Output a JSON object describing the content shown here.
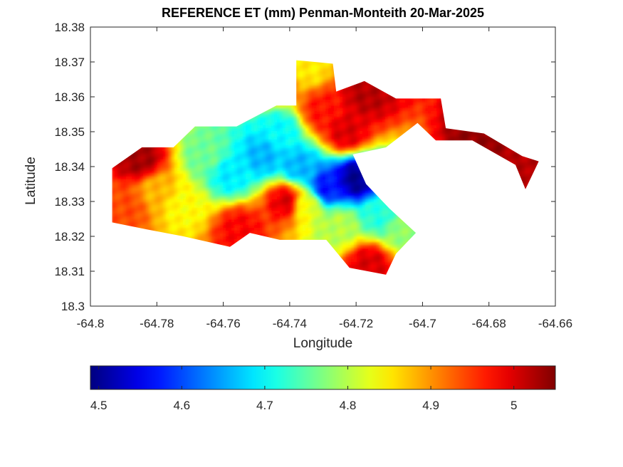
{
  "title": "REFERENCE ET (mm) Penman-Monteith 20-Mar-2025",
  "axes": {
    "xlabel": "Longitude",
    "ylabel": "Latitude",
    "xlim": [
      -64.8,
      -64.66
    ],
    "ylim": [
      18.3,
      18.38
    ],
    "xticks": [
      "-64.8",
      "-64.78",
      "-64.76",
      "-64.74",
      "-64.72",
      "-64.7",
      "-64.68",
      "-64.66"
    ],
    "yticks": [
      "18.3",
      "18.31",
      "18.32",
      "18.33",
      "18.34",
      "18.35",
      "18.36",
      "18.37",
      "18.38"
    ]
  },
  "colorbar": {
    "colormap": "jet",
    "range": [
      4.49,
      5.05
    ],
    "ticks": [
      "4.5",
      "4.6",
      "4.7",
      "4.8",
      "4.9",
      "5"
    ],
    "tick_values": [
      4.5,
      4.6,
      4.7,
      4.8,
      4.9,
      5.0
    ]
  },
  "chart_data": {
    "type": "heatmap",
    "variable": "Reference evapotranspiration",
    "units": "mm",
    "region": [
      [
        -64.7935,
        18.3395
      ],
      [
        -64.7845,
        18.3455
      ],
      [
        -64.775,
        18.3455
      ],
      [
        -64.7685,
        18.3515
      ],
      [
        -64.756,
        18.3515
      ],
      [
        -64.744,
        18.3575
      ],
      [
        -64.738,
        18.3575
      ],
      [
        -64.738,
        18.3705
      ],
      [
        -64.727,
        18.3695
      ],
      [
        -64.726,
        18.3615
      ],
      [
        -64.7175,
        18.3645
      ],
      [
        -64.708,
        18.3595
      ],
      [
        -64.6945,
        18.3595
      ],
      [
        -64.693,
        18.351
      ],
      [
        -64.6815,
        18.3495
      ],
      [
        -64.67,
        18.343
      ],
      [
        -64.665,
        18.3415
      ],
      [
        -64.669,
        18.3335
      ],
      [
        -64.672,
        18.3405
      ],
      [
        -64.685,
        18.3475
      ],
      [
        -64.696,
        18.3475
      ],
      [
        -64.7015,
        18.3525
      ],
      [
        -64.711,
        18.3455
      ],
      [
        -64.721,
        18.3435
      ],
      [
        -64.717,
        18.335
      ],
      [
        -64.71,
        18.328
      ],
      [
        -64.702,
        18.321
      ],
      [
        -64.708,
        18.315
      ],
      [
        -64.711,
        18.309
      ],
      [
        -64.722,
        18.311
      ],
      [
        -64.729,
        18.319
      ],
      [
        -64.743,
        18.319
      ],
      [
        -64.752,
        18.321
      ],
      [
        -64.758,
        18.317
      ],
      [
        -64.772,
        18.32
      ],
      [
        -64.783,
        18.322
      ],
      [
        -64.7935,
        18.324
      ]
    ],
    "hotspots": [
      {
        "lon": -64.72,
        "lat": 18.3365,
        "value": 4.5
      },
      {
        "lon": -64.729,
        "lat": 18.334,
        "value": 4.57
      },
      {
        "lon": -64.737,
        "lat": 18.34,
        "value": 4.66
      },
      {
        "lon": -64.748,
        "lat": 18.343,
        "value": 4.66
      },
      {
        "lon": -64.743,
        "lat": 18.35,
        "value": 4.7
      },
      {
        "lon": -64.758,
        "lat": 18.338,
        "value": 4.69
      },
      {
        "lon": -64.765,
        "lat": 18.343,
        "value": 4.76
      },
      {
        "lon": -64.713,
        "lat": 18.326,
        "value": 4.72
      },
      {
        "lon": -64.706,
        "lat": 18.322,
        "value": 4.78
      },
      {
        "lon": -64.725,
        "lat": 18.323,
        "value": 4.8
      },
      {
        "lon": -64.735,
        "lat": 18.329,
        "value": 4.83
      },
      {
        "lon": -64.772,
        "lat": 18.329,
        "value": 4.84
      },
      {
        "lon": -64.78,
        "lat": 18.333,
        "value": 4.88
      },
      {
        "lon": -64.723,
        "lat": 18.35,
        "value": 5.0
      },
      {
        "lon": -64.73,
        "lat": 18.356,
        "value": 4.97
      },
      {
        "lon": -64.717,
        "lat": 18.361,
        "value": 5.02
      },
      {
        "lon": -64.741,
        "lat": 18.33,
        "value": 5.0
      },
      {
        "lon": -64.785,
        "lat": 18.342,
        "value": 5.03
      },
      {
        "lon": -64.789,
        "lat": 18.328,
        "value": 4.94
      },
      {
        "lon": -64.716,
        "lat": 18.312,
        "value": 5.0
      },
      {
        "lon": -64.755,
        "lat": 18.322,
        "value": 4.98
      },
      {
        "lon": -64.671,
        "lat": 18.338,
        "value": 5.02
      },
      {
        "lon": -64.683,
        "lat": 18.348,
        "value": 5.04
      },
      {
        "lon": -64.744,
        "lat": 18.365,
        "value": 4.93
      },
      {
        "lon": -64.7345,
        "lat": 18.3685,
        "value": 4.85
      }
    ]
  }
}
